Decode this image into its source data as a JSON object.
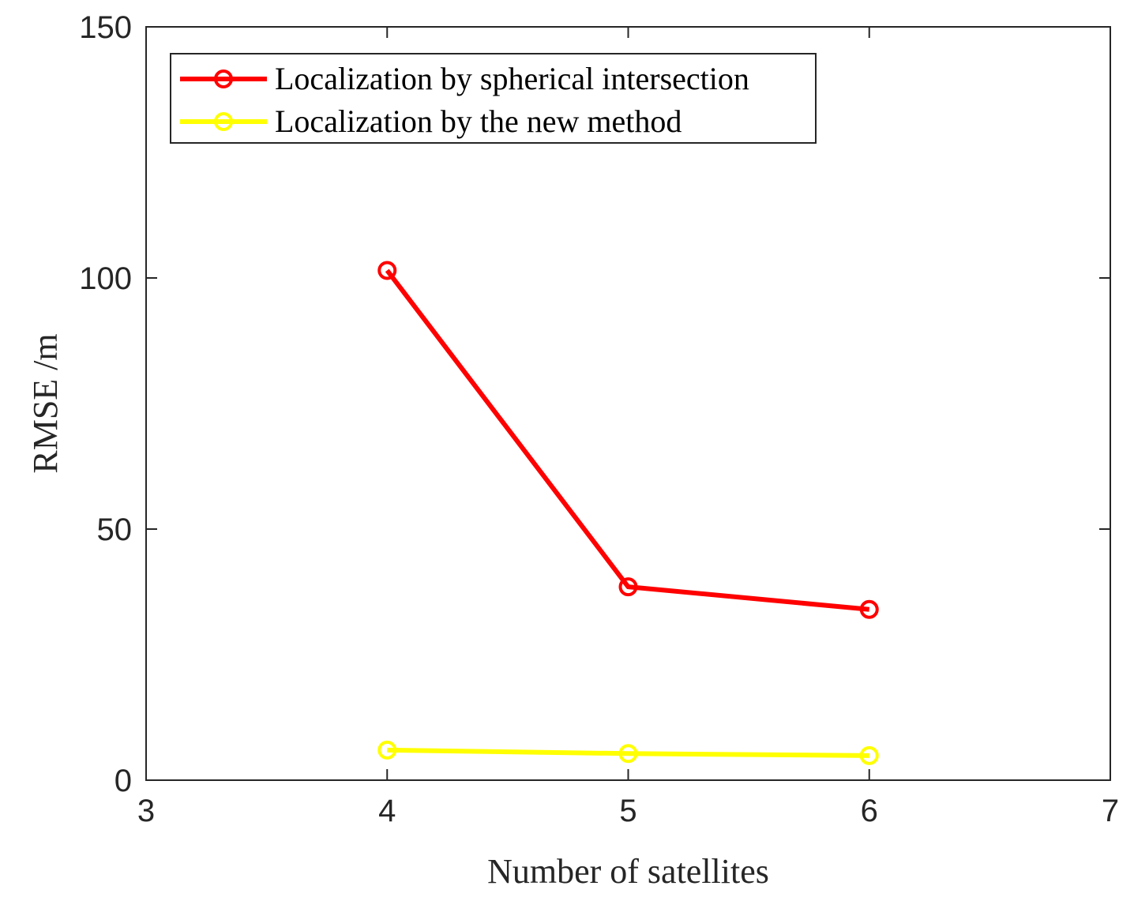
{
  "chart_data": {
    "type": "line",
    "title": "",
    "xlabel": "Number of satellites",
    "ylabel": "RMSE /m",
    "xlim": [
      3,
      7
    ],
    "ylim": [
      0,
      150
    ],
    "xticks": [
      3,
      4,
      5,
      6,
      7
    ],
    "yticks": [
      0,
      50,
      100,
      150
    ],
    "grid": false,
    "legend_position": "top-left",
    "x": [
      4,
      5,
      6
    ],
    "series": [
      {
        "name": "Localization by spherical intersection",
        "color": "#ff0000",
        "marker": "circle",
        "values": [
          101.5,
          38.5,
          34
        ]
      },
      {
        "name": "Localization by the new method",
        "color": "#ffff00",
        "marker": "circle",
        "values": [
          6,
          5.3,
          4.9
        ]
      }
    ]
  }
}
